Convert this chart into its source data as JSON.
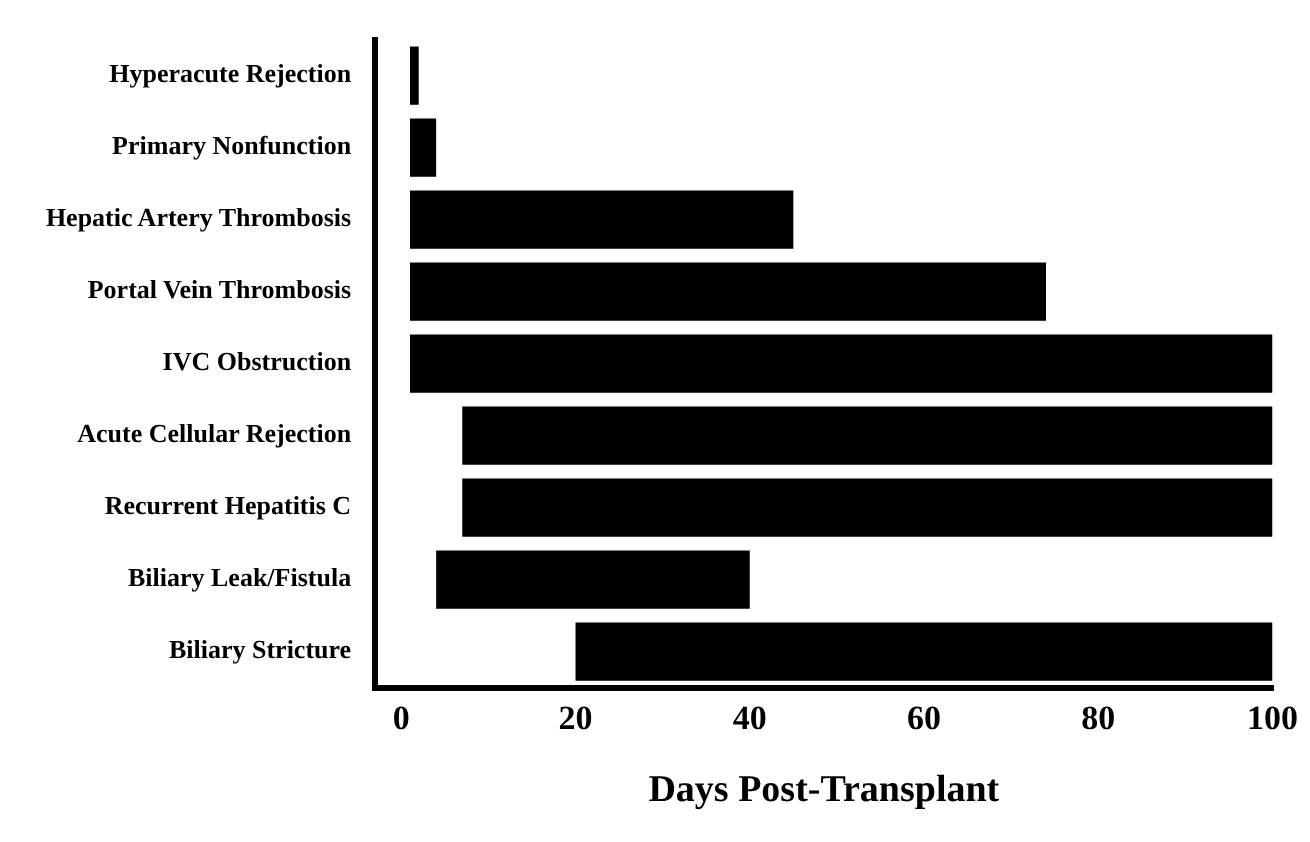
{
  "chart_data": {
    "type": "bar",
    "orientation": "horizontal",
    "xlabel": "Days Post-Transplant",
    "categories": [
      "Hyperacute Rejection",
      "Primary Nonfunction",
      "Hepatic Artery Thrombosis",
      "Portal Vein Thrombosis",
      "IVC Obstruction",
      "Acute Cellular Rejection",
      "Recurrent Hepatitis C",
      "Biliary Leak/Fistula",
      "Biliary Stricture"
    ],
    "base": [
      1,
      1,
      1,
      1,
      1,
      7,
      7,
      4,
      20
    ],
    "values": [
      1,
      3,
      44,
      73,
      99,
      93,
      93,
      36,
      80
    ],
    "color": "#000000",
    "xlim": [
      -3,
      100
    ],
    "xticks": [
      0,
      20,
      40,
      60,
      80,
      100
    ],
    "grid": false,
    "legend": false
  }
}
